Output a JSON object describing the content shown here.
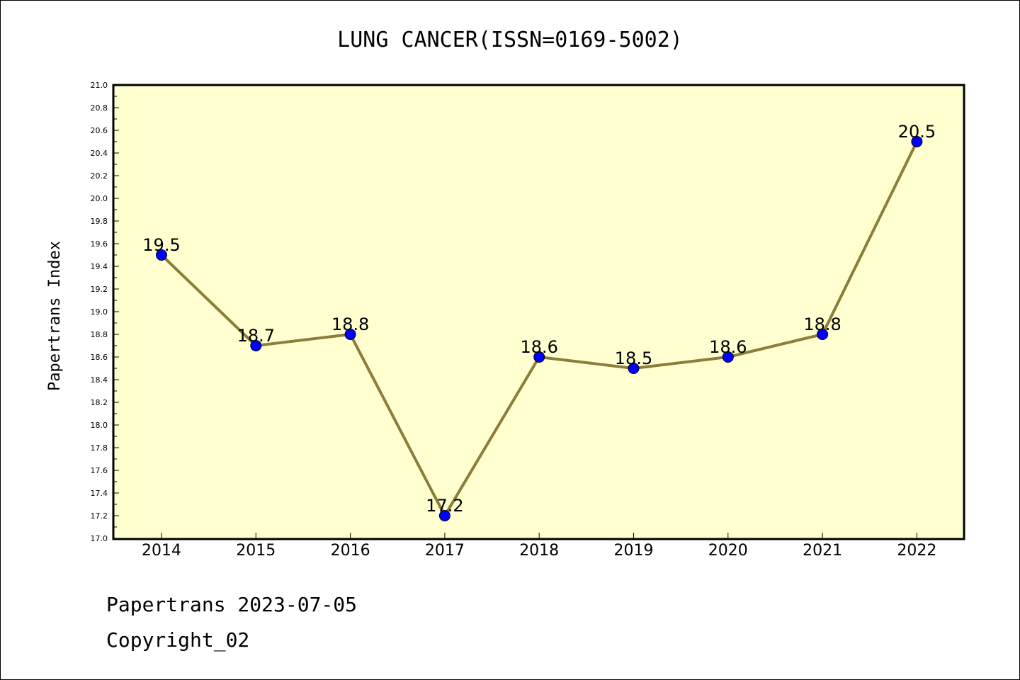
{
  "chart_data": {
    "type": "line",
    "title": "LUNG CANCER(ISSN=0169-5002)",
    "xlabel": "",
    "ylabel": "Papertrans Index",
    "categories": [
      "2014",
      "2015",
      "2016",
      "2017",
      "2018",
      "2019",
      "2020",
      "2021",
      "2022"
    ],
    "values": [
      19.5,
      18.7,
      18.8,
      17.2,
      18.6,
      18.5,
      18.6,
      18.8,
      20.5
    ],
    "data_labels": [
      "19.5",
      "18.7",
      "18.8",
      "17.2",
      "18.6",
      "18.5",
      "18.6",
      "18.8",
      "20.5"
    ],
    "ylim": [
      17.0,
      21.0
    ],
    "yticks": [
      "17.0",
      "17.2",
      "17.4",
      "17.6",
      "17.8",
      "18.0",
      "18.2",
      "18.4",
      "18.6",
      "18.8",
      "19.0",
      "19.2",
      "19.4",
      "19.6",
      "19.8",
      "20.0",
      "20.2",
      "20.4",
      "20.6",
      "20.8",
      "21.0"
    ],
    "grid": false,
    "legend": "none",
    "colors": {
      "line": "#8b7d3a",
      "marker": "#0000ff",
      "plot_background": "#ffffd0"
    }
  },
  "footer": {
    "line1": "Papertrans 2023-07-05",
    "line2": "Copyright_02"
  }
}
